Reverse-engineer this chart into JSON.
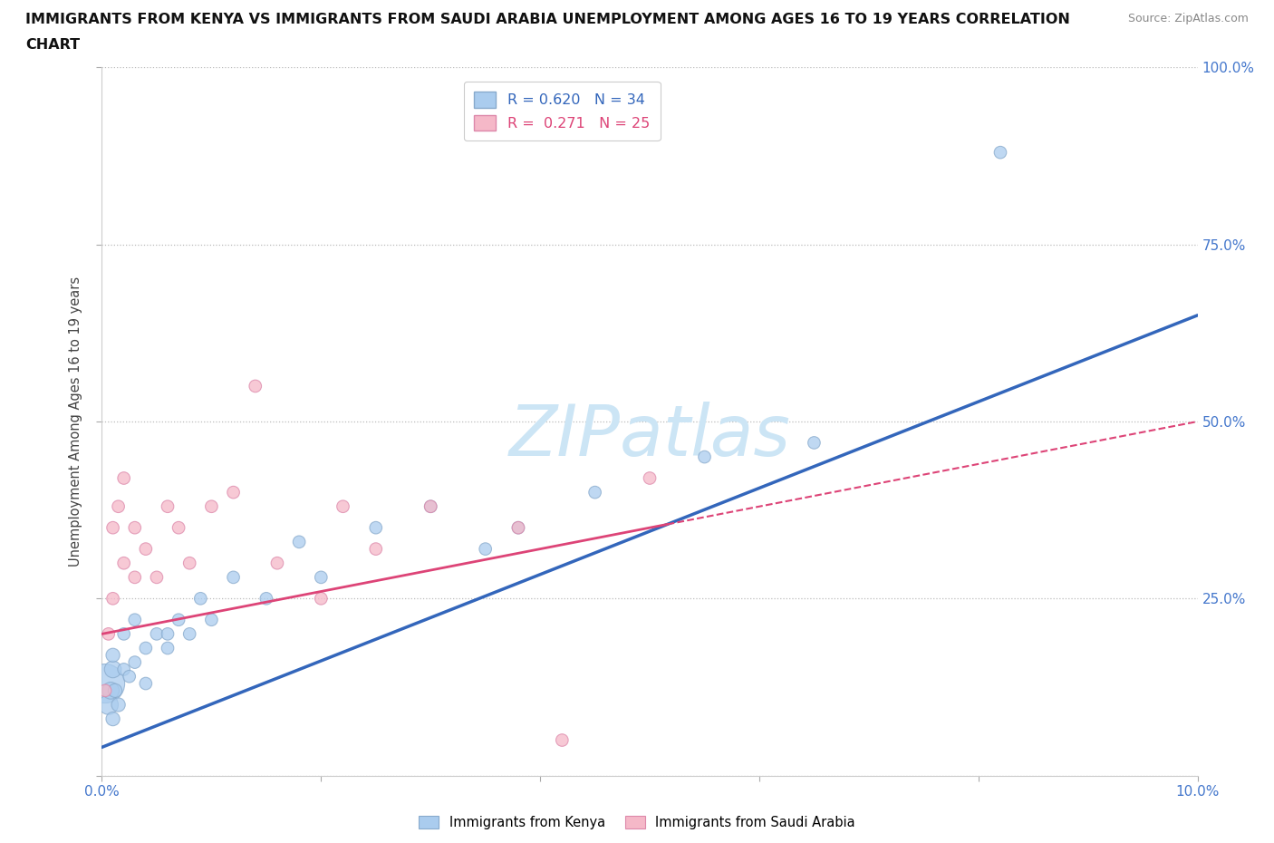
{
  "title_line1": "IMMIGRANTS FROM KENYA VS IMMIGRANTS FROM SAUDI ARABIA UNEMPLOYMENT AMONG AGES 16 TO 19 YEARS CORRELATION",
  "title_line2": "CHART",
  "source": "Source: ZipAtlas.com",
  "ylabel": "Unemployment Among Ages 16 to 19 years",
  "xlim": [
    0,
    0.1
  ],
  "ylim": [
    0,
    1.0
  ],
  "kenya_R": 0.62,
  "kenya_N": 34,
  "saudi_R": 0.271,
  "saudi_N": 25,
  "kenya_color": "#aaccee",
  "saudi_color": "#f5b8c8",
  "kenya_edge": "#88aacc",
  "saudi_edge": "#dd88aa",
  "trend_kenya_color": "#3366bb",
  "trend_saudi_color": "#dd4477",
  "watermark": "ZIPatlas",
  "watermark_color": "#cce5f5",
  "background_color": "#ffffff",
  "kenya_x": [
    0.0003,
    0.0006,
    0.0008,
    0.001,
    0.001,
    0.001,
    0.0012,
    0.0015,
    0.002,
    0.002,
    0.0025,
    0.003,
    0.003,
    0.004,
    0.004,
    0.005,
    0.006,
    0.006,
    0.007,
    0.008,
    0.009,
    0.01,
    0.012,
    0.015,
    0.018,
    0.02,
    0.025,
    0.03,
    0.035,
    0.038,
    0.045,
    0.055,
    0.065,
    0.082
  ],
  "kenya_y": [
    0.13,
    0.1,
    0.12,
    0.15,
    0.08,
    0.17,
    0.12,
    0.1,
    0.15,
    0.2,
    0.14,
    0.16,
    0.22,
    0.18,
    0.13,
    0.2,
    0.2,
    0.18,
    0.22,
    0.2,
    0.25,
    0.22,
    0.28,
    0.25,
    0.33,
    0.28,
    0.35,
    0.38,
    0.32,
    0.35,
    0.4,
    0.45,
    0.47,
    0.88
  ],
  "kenya_sizes": [
    800,
    200,
    150,
    150,
    100,
    100,
    100,
    100,
    80,
    80,
    80,
    80,
    80,
    80,
    80,
    80,
    80,
    80,
    80,
    80,
    80,
    80,
    80,
    80,
    80,
    80,
    80,
    80,
    80,
    80,
    80,
    80,
    80,
    80
  ],
  "saudi_x": [
    0.0003,
    0.0006,
    0.001,
    0.001,
    0.0015,
    0.002,
    0.002,
    0.003,
    0.003,
    0.004,
    0.005,
    0.006,
    0.007,
    0.008,
    0.01,
    0.012,
    0.014,
    0.016,
    0.02,
    0.022,
    0.025,
    0.03,
    0.038,
    0.042,
    0.05
  ],
  "saudi_y": [
    0.12,
    0.2,
    0.25,
    0.35,
    0.38,
    0.3,
    0.42,
    0.28,
    0.35,
    0.32,
    0.28,
    0.38,
    0.35,
    0.3,
    0.38,
    0.4,
    0.55,
    0.3,
    0.25,
    0.38,
    0.32,
    0.38,
    0.35,
    0.05,
    0.42
  ],
  "saudi_sizes": [
    80,
    80,
    80,
    80,
    80,
    80,
    80,
    80,
    80,
    80,
    80,
    80,
    80,
    80,
    80,
    80,
    80,
    80,
    80,
    80,
    80,
    80,
    80,
    80,
    80
  ],
  "kenya_trend_x0": 0.0,
  "kenya_trend_y0": 0.04,
  "kenya_trend_x1": 0.1,
  "kenya_trend_y1": 0.65,
  "saudi_trend_x0": 0.0,
  "saudi_trend_y0": 0.2,
  "saudi_trend_x1": 0.1,
  "saudi_trend_y1": 0.5
}
